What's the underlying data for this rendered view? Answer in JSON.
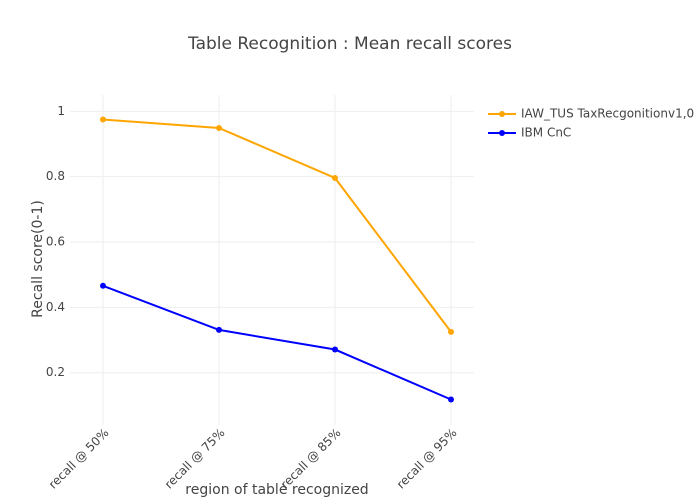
{
  "chart_data": {
    "type": "line",
    "title": "Table Recognition : Mean recall scores",
    "xlabel": "region of table recognized",
    "ylabel": "Recall score(0-1)",
    "categories": [
      "recall @ 50%",
      "recall @ 75%",
      "recall @ 85%",
      "recall @ 95%"
    ],
    "series": [
      {
        "name": "IAW_TUS TaxRecgonitionv1,0",
        "color": "#ffa500",
        "values": [
          0.975,
          0.949,
          0.796,
          0.325
        ]
      },
      {
        "name": "IBM CnC",
        "color": "#0000ff",
        "values": [
          0.466,
          0.331,
          0.271,
          0.118
        ]
      }
    ],
    "ylim": [
      0.04,
      1.05
    ],
    "yticks": [
      0.2,
      0.4,
      0.6,
      0.8,
      1
    ],
    "grid": true,
    "legend": "top-right"
  }
}
